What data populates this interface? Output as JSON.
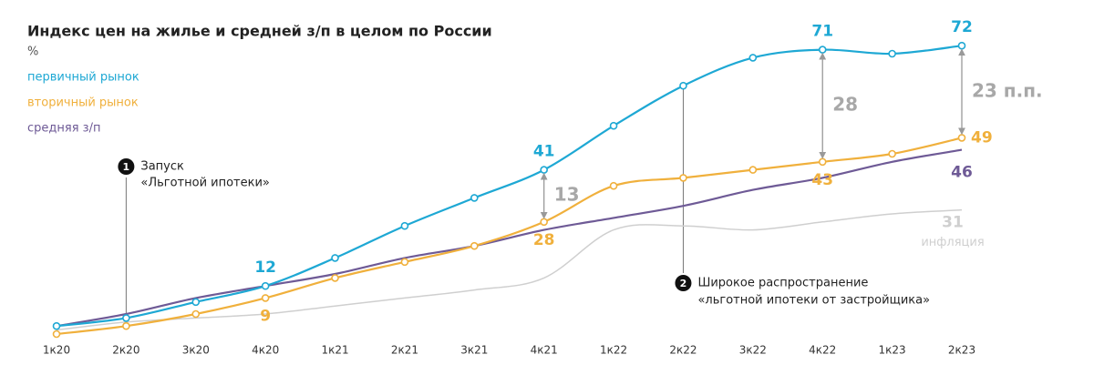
{
  "chart_data": {
    "type": "line",
    "title": "Индекс цен на жилье и средней з/п в целом по России",
    "unit": "%",
    "categories": [
      "1к20",
      "2к20",
      "3к20",
      "4к20",
      "1к21",
      "2к21",
      "3к21",
      "4к21",
      "1к22",
      "2к22",
      "3к22",
      "4к22",
      "1к23",
      "2к23"
    ],
    "ylim": [
      0,
      80
    ],
    "legend": "top-left",
    "series": [
      {
        "name": "первичный рынок",
        "color": "#1ea8d4",
        "markers": true,
        "in_legend": true,
        "values": [
          2,
          4,
          8,
          12,
          19,
          27,
          34,
          41,
          52,
          62,
          69,
          71,
          70,
          72
        ],
        "labeled": [
          3,
          7,
          11,
          13
        ]
      },
      {
        "name": "вторичный рынок",
        "color": "#f0b03c",
        "markers": true,
        "in_legend": true,
        "values": [
          0,
          2,
          5,
          9,
          14,
          18,
          22,
          28,
          37,
          39,
          41,
          43,
          45,
          49
        ],
        "labeled": [
          3,
          7,
          11,
          13
        ]
      },
      {
        "name": "средняя з/п",
        "color": "#6e5a96",
        "markers": false,
        "in_legend": true,
        "values": [
          2,
          5,
          9,
          12,
          15,
          19,
          22,
          26,
          29,
          32,
          36,
          39,
          43,
          46
        ],
        "labeled": [
          13
        ]
      },
      {
        "name": "инфляция",
        "color": "#cfcfcf",
        "markers": false,
        "in_legend": false,
        "values": [
          1,
          3,
          4,
          5,
          7,
          9,
          11,
          14,
          26,
          27,
          26,
          28,
          30,
          31
        ],
        "labeled": [
          13
        ]
      }
    ],
    "gaps": [
      {
        "at": 7,
        "value": 13
      },
      {
        "at": 11,
        "value": 28
      },
      {
        "at": 13,
        "value": 23,
        "label": "23 п.п."
      }
    ],
    "events": [
      {
        "number": 1,
        "at": 1,
        "text": [
          "Запуск",
          "«Льготной ипотеки»"
        ]
      },
      {
        "number": 2,
        "at": 9,
        "text": [
          "Широкое распространение",
          "«льготной ипотеки от застройщика»"
        ]
      }
    ]
  }
}
